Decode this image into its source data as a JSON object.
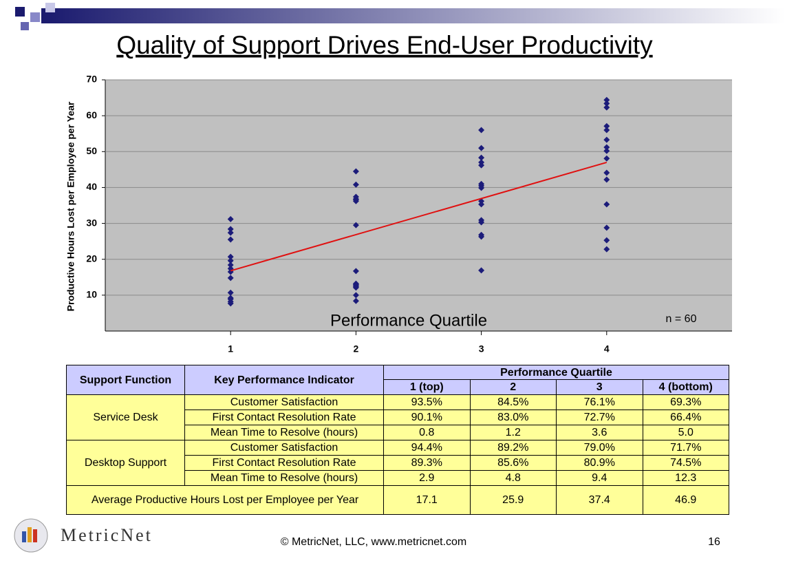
{
  "chart_data": {
    "type": "scatter",
    "title": "Quality of Support Drives End-User Productivity",
    "y_label": "Productive Hours Lost per Employee per Year",
    "x_label": "Performance Quartile",
    "annotation": "n = 60",
    "xlim": [
      0,
      5
    ],
    "xticks": [
      1,
      2,
      3,
      4
    ],
    "ylim": [
      0,
      70
    ],
    "yticks": [
      10,
      20,
      30,
      40,
      50,
      60,
      70
    ],
    "grid": true,
    "series": [
      {
        "color": "#1c1c7a",
        "x": [
          1,
          1,
          1,
          1,
          1,
          1,
          1,
          1,
          1,
          1,
          1,
          1,
          1,
          1,
          1,
          2,
          2,
          2,
          2,
          2,
          2,
          2,
          2,
          2,
          2,
          2,
          2,
          2,
          2,
          2,
          3,
          3,
          3,
          3,
          3,
          3,
          3,
          3,
          3,
          3,
          3,
          3,
          3,
          3,
          3,
          4,
          4,
          4,
          4,
          4,
          4,
          4,
          4,
          4,
          4,
          4,
          4,
          4,
          4,
          4
        ],
        "values": [
          31.2,
          28.4,
          27.4,
          25.5,
          20.7,
          19.6,
          18.4,
          17.4,
          16.5,
          14.8,
          10.7,
          9.2,
          8.9,
          8.2,
          7.7,
          44.5,
          40.8,
          37.4,
          36.8,
          36.6,
          36.2,
          29.5,
          16.7,
          13.2,
          13.0,
          12.7,
          12.4,
          12.1,
          10.0,
          8.4,
          56.0,
          51.0,
          48.3,
          47.0,
          46.2,
          41.0,
          40.5,
          39.9,
          36.2,
          35.3,
          30.9,
          30.3,
          26.8,
          26.3,
          16.9,
          64.4,
          63.4,
          62.3,
          57.1,
          56.0,
          53.3,
          51.2,
          50.2,
          48.1,
          44.1,
          42.2,
          35.3,
          28.8,
          25.3,
          22.8
        ]
      }
    ],
    "trendline": {
      "color": "#e01010",
      "x": [
        1,
        4
      ],
      "y": [
        16.8,
        47.0
      ]
    }
  },
  "table": {
    "header": {
      "function": "Support Function",
      "kpi": "Key Performance Indicator",
      "quartile": "Performance Quartile",
      "columns": [
        "1 (top)",
        "2",
        "3",
        "4 (bottom)"
      ]
    },
    "groups": [
      {
        "name": "Service Desk",
        "rows": [
          {
            "kpi": "Customer Satisfaction",
            "values": [
              "93.5%",
              "84.5%",
              "76.1%",
              "69.3%"
            ]
          },
          {
            "kpi": "First Contact Resolution Rate",
            "values": [
              "90.1%",
              "83.0%",
              "72.7%",
              "66.4%"
            ]
          },
          {
            "kpi": "Mean Time to Resolve (hours)",
            "values": [
              "0.8",
              "1.2",
              "3.6",
              "5.0"
            ]
          }
        ]
      },
      {
        "name": "Desktop Support",
        "rows": [
          {
            "kpi": "Customer Satisfaction",
            "values": [
              "94.4%",
              "89.2%",
              "79.0%",
              "71.7%"
            ]
          },
          {
            "kpi": "First Contact Resolution Rate",
            "values": [
              "89.3%",
              "85.6%",
              "80.9%",
              "74.5%"
            ]
          },
          {
            "kpi": "Mean Time to Resolve (hours)",
            "values": [
              "2.9",
              "4.8",
              "9.4",
              "12.3"
            ]
          }
        ]
      }
    ],
    "summary": {
      "label": "Average Productive Hours Lost per Employee per Year",
      "values": [
        "17.1",
        "25.9",
        "37.4",
        "46.9"
      ]
    }
  },
  "footer": {
    "logo": "MetricNet",
    "copyright": "© MetricNet, LLC, www.metricnet.com",
    "page": "16"
  }
}
